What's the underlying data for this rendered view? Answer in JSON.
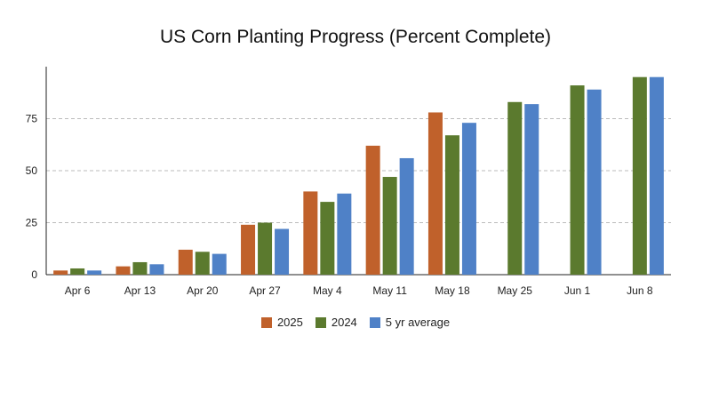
{
  "chart_data": {
    "type": "bar",
    "title": "US Corn Planting Progress (Percent Complete)",
    "xlabel": "",
    "ylabel": "",
    "categories": [
      "Apr 6",
      "Apr 13",
      "Apr 20",
      "Apr 27",
      "May 4",
      "May 11",
      "May 18",
      "May 25",
      "Jun 1",
      "Jun 8"
    ],
    "series": [
      {
        "name": "2025",
        "color": "#c0612b",
        "values": [
          2,
          4,
          12,
          24,
          40,
          62,
          78,
          null,
          null,
          null
        ]
      },
      {
        "name": "2024",
        "color": "#5b7a2e",
        "values": [
          3,
          6,
          11,
          25,
          35,
          47,
          67,
          83,
          91,
          95
        ]
      },
      {
        "name": "5 yr average",
        "color": "#4f81c7",
        "values": [
          2,
          5,
          10,
          22,
          39,
          56,
          73,
          82,
          89,
          95
        ]
      }
    ],
    "ylim": [
      0,
      100
    ],
    "yticks": [
      0,
      25,
      50,
      75
    ],
    "grid": true,
    "legend_position": "bottom"
  }
}
